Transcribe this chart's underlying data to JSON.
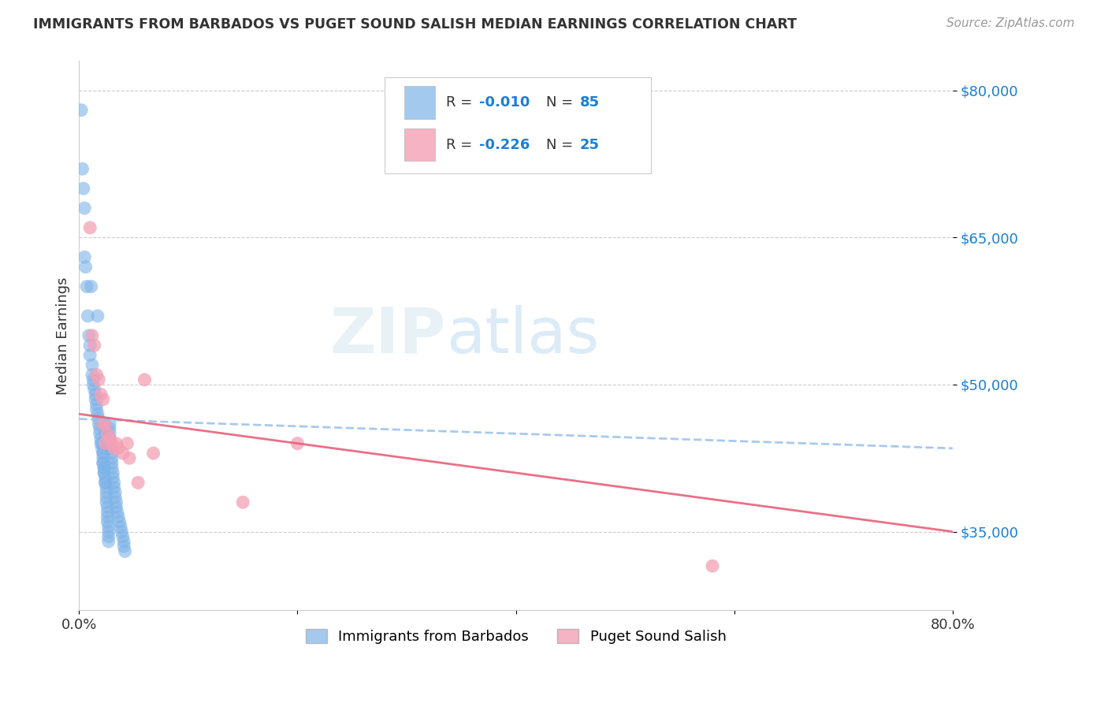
{
  "title": "IMMIGRANTS FROM BARBADOS VS PUGET SOUND SALISH MEDIAN EARNINGS CORRELATION CHART",
  "source": "Source: ZipAtlas.com",
  "ylabel": "Median Earnings",
  "xlim": [
    0.0,
    0.8
  ],
  "ylim": [
    27000,
    83000
  ],
  "yticks": [
    35000,
    50000,
    65000,
    80000
  ],
  "ytick_labels": [
    "$35,000",
    "$50,000",
    "$65,000",
    "$80,000"
  ],
  "xticks": [
    0.0,
    0.2,
    0.4,
    0.6,
    0.8
  ],
  "xtick_labels": [
    "0.0%",
    "",
    "",
    "",
    "80.0%"
  ],
  "legend_labels": [
    "Immigrants from Barbados",
    "Puget Sound Salish"
  ],
  "R_blue": -0.01,
  "N_blue": 85,
  "R_pink": -0.226,
  "N_pink": 25,
  "blue_color": "#7eb3e8",
  "pink_color": "#f4a0b5",
  "blue_line_color": "#9ac0ea",
  "pink_line_color": "#e8607a",
  "bg_color": "#ffffff",
  "blue_trend_x": [
    0.0,
    0.8
  ],
  "blue_trend_y": [
    46500,
    43500
  ],
  "pink_trend_x": [
    0.0,
    0.8
  ],
  "pink_trend_y": [
    47000,
    35000
  ],
  "blue_scatter_x": [
    0.002,
    0.003,
    0.004,
    0.005,
    0.005,
    0.006,
    0.007,
    0.008,
    0.009,
    0.01,
    0.01,
    0.011,
    0.012,
    0.012,
    0.013,
    0.013,
    0.014,
    0.015,
    0.015,
    0.016,
    0.016,
    0.017,
    0.017,
    0.018,
    0.018,
    0.019,
    0.019,
    0.02,
    0.02,
    0.021,
    0.021,
    0.022,
    0.022,
    0.022,
    0.022,
    0.022,
    0.023,
    0.023,
    0.023,
    0.023,
    0.024,
    0.024,
    0.024,
    0.025,
    0.025,
    0.025,
    0.025,
    0.026,
    0.026,
    0.026,
    0.026,
    0.027,
    0.027,
    0.027,
    0.027,
    0.028,
    0.028,
    0.028,
    0.028,
    0.029,
    0.029,
    0.03,
    0.03,
    0.03,
    0.03,
    0.031,
    0.031,
    0.032,
    0.032,
    0.033,
    0.033,
    0.034,
    0.034,
    0.035,
    0.036,
    0.037,
    0.038,
    0.039,
    0.04,
    0.041,
    0.041,
    0.042,
    0.023,
    0.024,
    0.025
  ],
  "blue_scatter_y": [
    78000,
    72000,
    70000,
    68000,
    63000,
    62000,
    60000,
    57000,
    55000,
    54000,
    53000,
    60000,
    52000,
    51000,
    50500,
    50000,
    49500,
    49000,
    48500,
    48000,
    47500,
    57000,
    47000,
    46500,
    46000,
    45500,
    45000,
    44500,
    44000,
    44000,
    43500,
    43000,
    43000,
    42500,
    42000,
    42000,
    41500,
    41500,
    41000,
    41000,
    40500,
    40000,
    40000,
    39500,
    39000,
    38500,
    38000,
    37500,
    37000,
    36500,
    36000,
    35500,
    35000,
    34500,
    34000,
    46000,
    45500,
    45000,
    44500,
    44000,
    43500,
    43000,
    42500,
    42000,
    41500,
    41000,
    40500,
    40000,
    39500,
    39000,
    38500,
    38000,
    37500,
    37000,
    36500,
    36000,
    35500,
    35000,
    34500,
    34000,
    33500,
    33000,
    46000,
    45500,
    45000
  ],
  "pink_scatter_x": [
    0.01,
    0.012,
    0.014,
    0.016,
    0.018,
    0.02,
    0.022,
    0.024,
    0.026,
    0.028,
    0.03,
    0.032,
    0.034,
    0.036,
    0.04,
    0.044,
    0.046,
    0.054,
    0.06,
    0.068,
    0.022,
    0.024,
    0.2,
    0.58,
    0.15
  ],
  "pink_scatter_y": [
    66000,
    55000,
    54000,
    51000,
    50500,
    49000,
    48500,
    46000,
    45000,
    44500,
    44000,
    43500,
    44000,
    43500,
    43000,
    44000,
    42500,
    40000,
    50500,
    43000,
    46000,
    44000,
    44000,
    31500,
    38000
  ]
}
